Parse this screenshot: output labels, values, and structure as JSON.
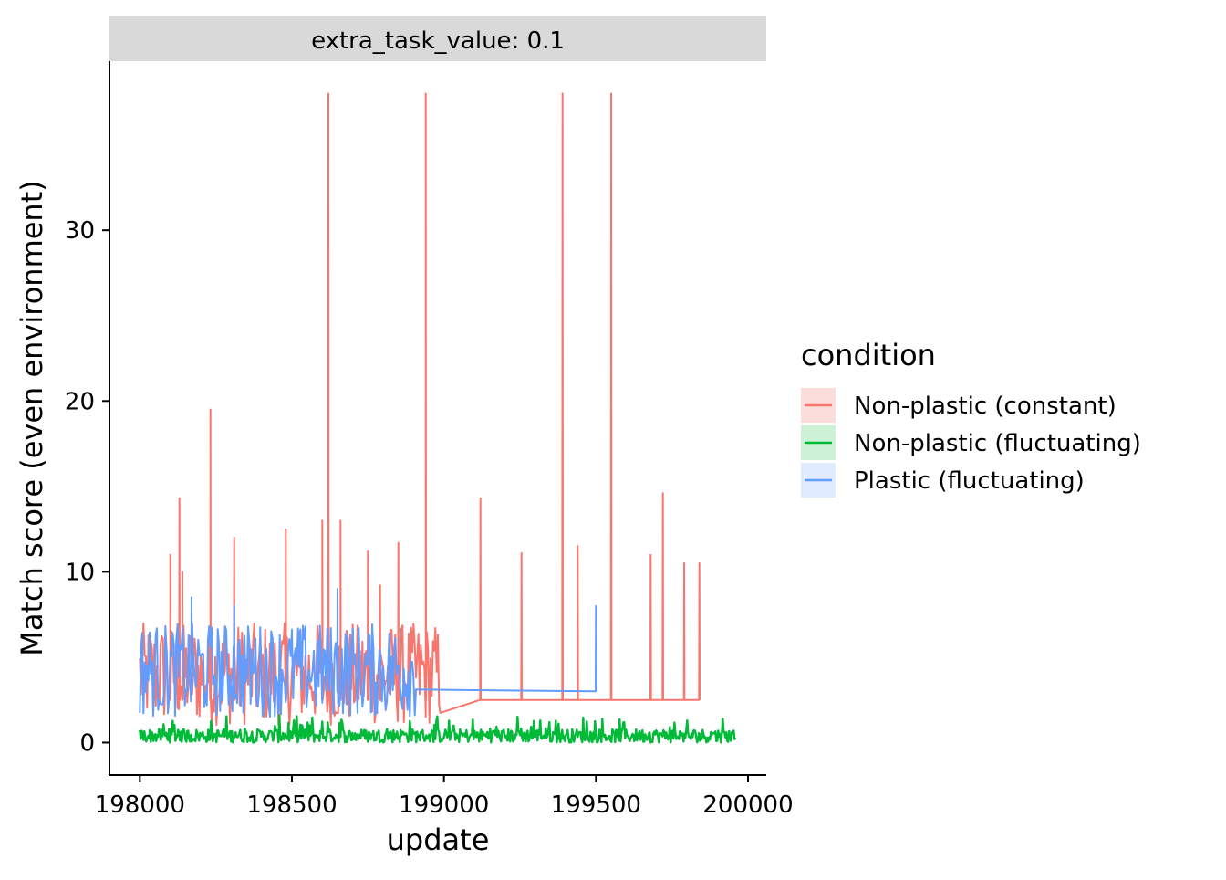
{
  "chart_data": {
    "type": "line",
    "facet_label": "extra_task_value: 0.1",
    "xlabel": "update",
    "ylabel": "Match score (even environment)",
    "xlim": [
      197900,
      200060
    ],
    "ylim": [
      -1.9,
      39.9
    ],
    "x_ticks": [
      198000,
      198500,
      199000,
      199500,
      200000
    ],
    "x_tick_labels": [
      "198000",
      "198500",
      "199000",
      "199500",
      "200000"
    ],
    "y_ticks": [
      0,
      10,
      20,
      30
    ],
    "y_tick_labels": [
      "0",
      "10",
      "20",
      "30"
    ],
    "grid": false,
    "legend": {
      "title": "condition",
      "placement": "right",
      "entries": [
        "Non-plastic (constant)",
        "Non-plastic (fluctuating)",
        "Plastic (fluctuating)"
      ]
    },
    "series": [
      {
        "name": "Non-plastic (constant)",
        "color": "#F8766D",
        "ribbon_color": "#FBDEDC",
        "x_range": [
          198000,
          198990
        ],
        "baseline": 2.5,
        "jitter_max": 6,
        "spikes": [
          {
            "x": 198620,
            "y": 38
          },
          {
            "x": 198940,
            "y": 38
          },
          {
            "x": 199390,
            "y": 38
          },
          {
            "x": 199550,
            "y": 38
          },
          {
            "x": 198232,
            "y": 19.5
          },
          {
            "x": 198130,
            "y": 14.3
          },
          {
            "x": 199720,
            "y": 14.6
          },
          {
            "x": 198600,
            "y": 13
          },
          {
            "x": 198660,
            "y": 13
          },
          {
            "x": 199120,
            "y": 14.3
          },
          {
            "x": 198480,
            "y": 12.5
          },
          {
            "x": 198310,
            "y": 12
          },
          {
            "x": 198850,
            "y": 11.7
          },
          {
            "x": 198100,
            "y": 11
          },
          {
            "x": 199440,
            "y": 11.5
          },
          {
            "x": 198750,
            "y": 11.2
          },
          {
            "x": 199680,
            "y": 11
          },
          {
            "x": 199255,
            "y": 11.1
          },
          {
            "x": 199790,
            "y": 10.5
          },
          {
            "x": 199840,
            "y": 10.5
          },
          {
            "x": 198140,
            "y": 10
          },
          {
            "x": 198790,
            "y": 9.2
          }
        ]
      },
      {
        "name": "Non-plastic (fluctuating)",
        "color": "#00BA38",
        "ribbon_color": "#CCF1D7",
        "x_range": [
          198000,
          199960
        ],
        "baseline": 0.1,
        "jitter_max": 1.6
      },
      {
        "name": "Plastic (fluctuating)",
        "color": "#619CFF",
        "ribbon_color": "#DFEBFF",
        "x_range": [
          198000,
          198910
        ],
        "baseline": 3,
        "jitter_max": 5.5,
        "spikes": [
          {
            "x": 198170,
            "y": 8.5
          },
          {
            "x": 198650,
            "y": 9
          },
          {
            "x": 198310,
            "y": 8
          },
          {
            "x": 199500,
            "y": 8
          }
        ]
      }
    ]
  }
}
